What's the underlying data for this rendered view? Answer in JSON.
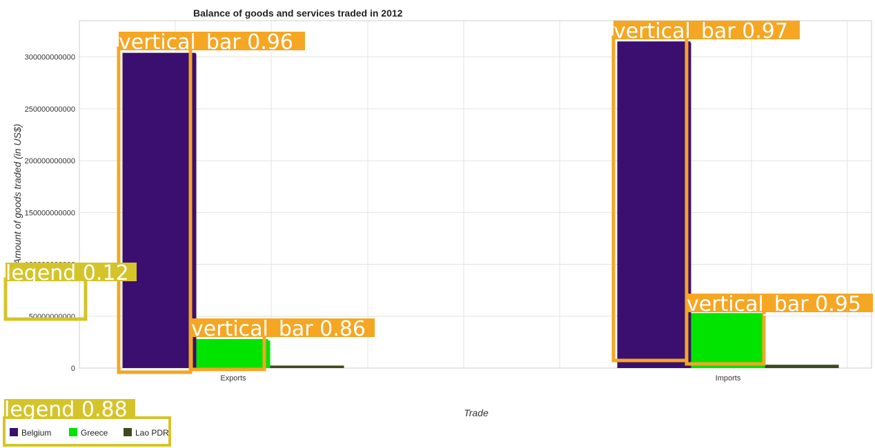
{
  "chart_data": {
    "type": "bar",
    "title": "Balance of goods and services traded in 2012",
    "xlabel": "Trade",
    "ylabel": "Amount of goods traded (in US$)",
    "categories": [
      "Exports",
      "Imports"
    ],
    "series": [
      {
        "name": "Belgium",
        "color": "#3b0f6f",
        "values": [
          304000000000,
          315000000000
        ]
      },
      {
        "name": "Greece",
        "color": "#00e400",
        "values": [
          28000000000,
          53000000000
        ]
      },
      {
        "name": "Lao PDR",
        "color": "#3d4a1c",
        "values": [
          2400000000,
          3200000000
        ]
      }
    ],
    "ylim": [
      0,
      335000000000
    ],
    "yticks": [
      0,
      50000000000,
      100000000000,
      150000000000,
      200000000000,
      250000000000,
      300000000000
    ],
    "ytick_labels": [
      "0",
      "50000000000",
      "100000000000",
      "150000000000",
      "200000000000",
      "250000000000",
      "300000000000"
    ],
    "grid": true,
    "legend_position": "bottom-left"
  },
  "annotations": {
    "exports_belgium": "vertical_bar  0.96",
    "exports_greece": "vertical_bar  0.86",
    "imports_belgium": "vertical_bar  0.97",
    "imports_greece": "vertical_bar  0.95",
    "legend_small": "legend  0.12",
    "legend_main": "legend  0.88"
  },
  "colors": {
    "annotation_orange": "#f5a623",
    "annotation_yellow": "#d4c42a"
  }
}
